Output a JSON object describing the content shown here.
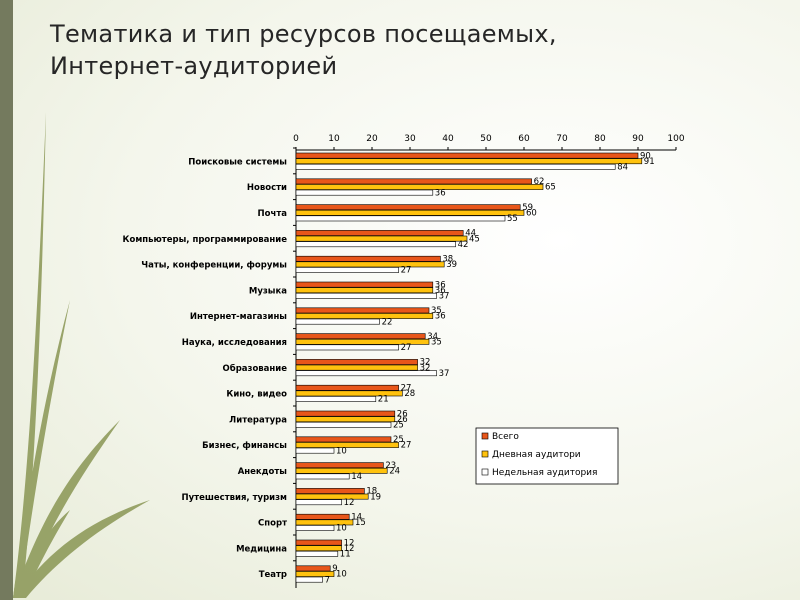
{
  "slide": {
    "title_line1": "Тематика и тип ресурсов посещаемых,",
    "title_line2": "Интернет-аудиторией"
  },
  "chart_data": {
    "type": "bar",
    "orientation": "horizontal",
    "title": "",
    "xlabel": "",
    "ylabel": "",
    "xlim": [
      0,
      100
    ],
    "x_ticks": [
      0,
      10,
      20,
      30,
      40,
      50,
      60,
      70,
      80,
      90,
      100
    ],
    "x_axis_position": "top",
    "grid": false,
    "legend_position": "bottom-right",
    "categories": [
      "Поисковые системы",
      "Новости",
      "Почта",
      "Компьютеры, программирование",
      "Чаты, конференции, форумы",
      "Музыка",
      "Интернет-магазины",
      "Наука, исследования",
      "Образование",
      "Кино, видео",
      "Литература",
      "Бизнес, финансы",
      "Анекдоты",
      "Путешествия, туризм",
      "Спорт",
      "Медицина",
      "Театр"
    ],
    "series": [
      {
        "name": "Всего",
        "color": "#e8561a",
        "values": [
          90,
          62,
          59,
          44,
          38,
          36,
          35,
          34,
          32,
          27,
          26,
          25,
          23,
          18,
          14,
          12,
          9
        ]
      },
      {
        "name": "Дневная аудитори",
        "color": "#ffc20e",
        "values": [
          91,
          65,
          60,
          45,
          39,
          36,
          36,
          35,
          32,
          28,
          26,
          27,
          24,
          19,
          15,
          12,
          10
        ]
      },
      {
        "name": "Недельная аудитория",
        "color": "#ffffff",
        "values": [
          84,
          36,
          55,
          42,
          27,
          37,
          22,
          27,
          37,
          21,
          25,
          10,
          14,
          12,
          10,
          11,
          7
        ]
      }
    ]
  }
}
